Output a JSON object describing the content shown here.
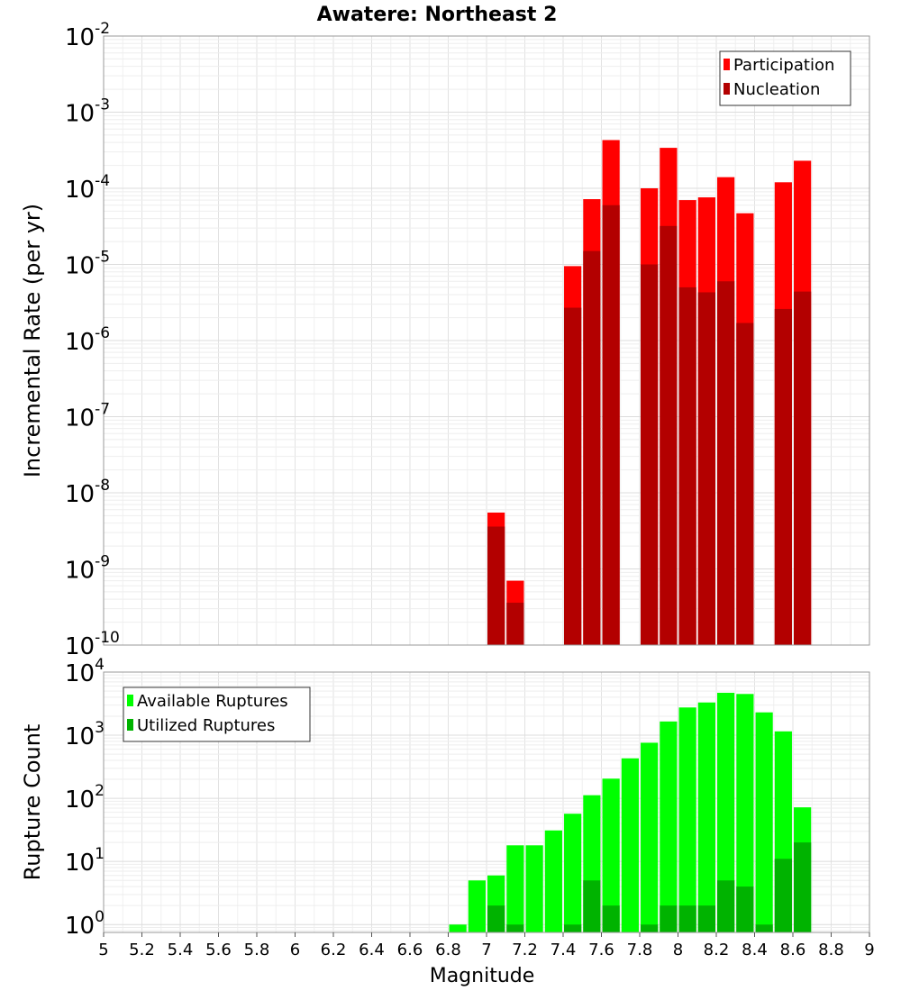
{
  "chart_data": [
    {
      "type": "bar",
      "title": "Awatere: Northeast 2",
      "xlabel": "",
      "ylabel": "Incremental Rate (per yr)",
      "y_scale": "log",
      "xlim": [
        5,
        9
      ],
      "ylim": [
        1e-10,
        0.01
      ],
      "grid": true,
      "legend_placement": "top-right",
      "y_ticks": [
        {
          "base": "10",
          "exp": "-10",
          "value": 1e-10
        },
        {
          "base": "10",
          "exp": "-9",
          "value": 1e-09
        },
        {
          "base": "10",
          "exp": "-8",
          "value": 1e-08
        },
        {
          "base": "10",
          "exp": "-7",
          "value": 1e-07
        },
        {
          "base": "10",
          "exp": "-6",
          "value": 1e-06
        },
        {
          "base": "10",
          "exp": "-5",
          "value": 1e-05
        },
        {
          "base": "10",
          "exp": "-4",
          "value": 0.0001
        },
        {
          "base": "10",
          "exp": "-3",
          "value": 0.001
        },
        {
          "base": "10",
          "exp": "-2",
          "value": 0.01
        }
      ],
      "series": [
        {
          "name": "Participation",
          "color": "#ff0000",
          "points": [
            {
              "x": 7.05,
              "y": 5.5e-09
            },
            {
              "x": 7.15,
              "y": 7e-10
            },
            {
              "x": 7.45,
              "y": 9.5e-06
            },
            {
              "x": 7.55,
              "y": 7.2e-05
            },
            {
              "x": 7.65,
              "y": 0.00043
            },
            {
              "x": 7.85,
              "y": 0.0001
            },
            {
              "x": 7.95,
              "y": 0.00034
            },
            {
              "x": 8.05,
              "y": 7e-05
            },
            {
              "x": 8.15,
              "y": 7.6e-05
            },
            {
              "x": 8.25,
              "y": 0.00014
            },
            {
              "x": 8.35,
              "y": 4.7e-05
            },
            {
              "x": 8.55,
              "y": 0.00012
            },
            {
              "x": 8.65,
              "y": 0.00023
            }
          ]
        },
        {
          "name": "Nucleation",
          "color": "#b30000",
          "points": [
            {
              "x": 7.05,
              "y": 3.6e-09
            },
            {
              "x": 7.15,
              "y": 3.6e-10
            },
            {
              "x": 7.45,
              "y": 2.7e-06
            },
            {
              "x": 7.55,
              "y": 1.5e-05
            },
            {
              "x": 7.65,
              "y": 6e-05
            },
            {
              "x": 7.85,
              "y": 1e-05
            },
            {
              "x": 7.95,
              "y": 3.2e-05
            },
            {
              "x": 8.05,
              "y": 5e-06
            },
            {
              "x": 8.15,
              "y": 4.3e-06
            },
            {
              "x": 8.25,
              "y": 6e-06
            },
            {
              "x": 8.35,
              "y": 1.7e-06
            },
            {
              "x": 8.55,
              "y": 2.6e-06
            },
            {
              "x": 8.65,
              "y": 4.4e-06
            }
          ]
        }
      ]
    },
    {
      "type": "bar",
      "title": "",
      "xlabel": "Magnitude",
      "ylabel": "Rupture Count",
      "y_scale": "log",
      "xlim": [
        5,
        9
      ],
      "ylim": [
        0.75,
        10000
      ],
      "grid": true,
      "legend_placement": "top-left",
      "x_ticks": [
        "5",
        "5.2",
        "5.4",
        "5.6",
        "5.8",
        "6",
        "6.2",
        "6.4",
        "6.6",
        "6.8",
        "7",
        "7.2",
        "7.4",
        "7.6",
        "7.8",
        "8",
        "8.2",
        "8.4",
        "8.6",
        "8.8",
        "9"
      ],
      "y_ticks": [
        {
          "base": "10",
          "exp": "0",
          "value": 1
        },
        {
          "base": "10",
          "exp": "1",
          "value": 10
        },
        {
          "base": "10",
          "exp": "2",
          "value": 100
        },
        {
          "base": "10",
          "exp": "3",
          "value": 1000
        },
        {
          "base": "10",
          "exp": "4",
          "value": 10000
        }
      ],
      "series": [
        {
          "name": "Available Ruptures",
          "color": "#00ff00",
          "points": [
            {
              "x": 6.85,
              "y": 1
            },
            {
              "x": 6.95,
              "y": 5
            },
            {
              "x": 7.05,
              "y": 6
            },
            {
              "x": 7.15,
              "y": 18
            },
            {
              "x": 7.25,
              "y": 18
            },
            {
              "x": 7.35,
              "y": 31
            },
            {
              "x": 7.45,
              "y": 57
            },
            {
              "x": 7.55,
              "y": 112
            },
            {
              "x": 7.65,
              "y": 205
            },
            {
              "x": 7.75,
              "y": 430
            },
            {
              "x": 7.85,
              "y": 760
            },
            {
              "x": 7.95,
              "y": 1650
            },
            {
              "x": 8.05,
              "y": 2750
            },
            {
              "x": 8.15,
              "y": 3300
            },
            {
              "x": 8.25,
              "y": 4700
            },
            {
              "x": 8.35,
              "y": 4500
            },
            {
              "x": 8.45,
              "y": 2300
            },
            {
              "x": 8.55,
              "y": 1150
            },
            {
              "x": 8.65,
              "y": 72
            }
          ]
        },
        {
          "name": "Utilized Ruptures",
          "color": "#00b300",
          "points": [
            {
              "x": 7.05,
              "y": 2
            },
            {
              "x": 7.15,
              "y": 1
            },
            {
              "x": 7.45,
              "y": 1
            },
            {
              "x": 7.55,
              "y": 5
            },
            {
              "x": 7.65,
              "y": 2
            },
            {
              "x": 7.85,
              "y": 1
            },
            {
              "x": 7.95,
              "y": 2
            },
            {
              "x": 8.05,
              "y": 2
            },
            {
              "x": 8.15,
              "y": 2
            },
            {
              "x": 8.25,
              "y": 5
            },
            {
              "x": 8.35,
              "y": 4
            },
            {
              "x": 8.45,
              "y": 1
            },
            {
              "x": 8.55,
              "y": 11
            },
            {
              "x": 8.65,
              "y": 20
            }
          ]
        }
      ]
    }
  ]
}
